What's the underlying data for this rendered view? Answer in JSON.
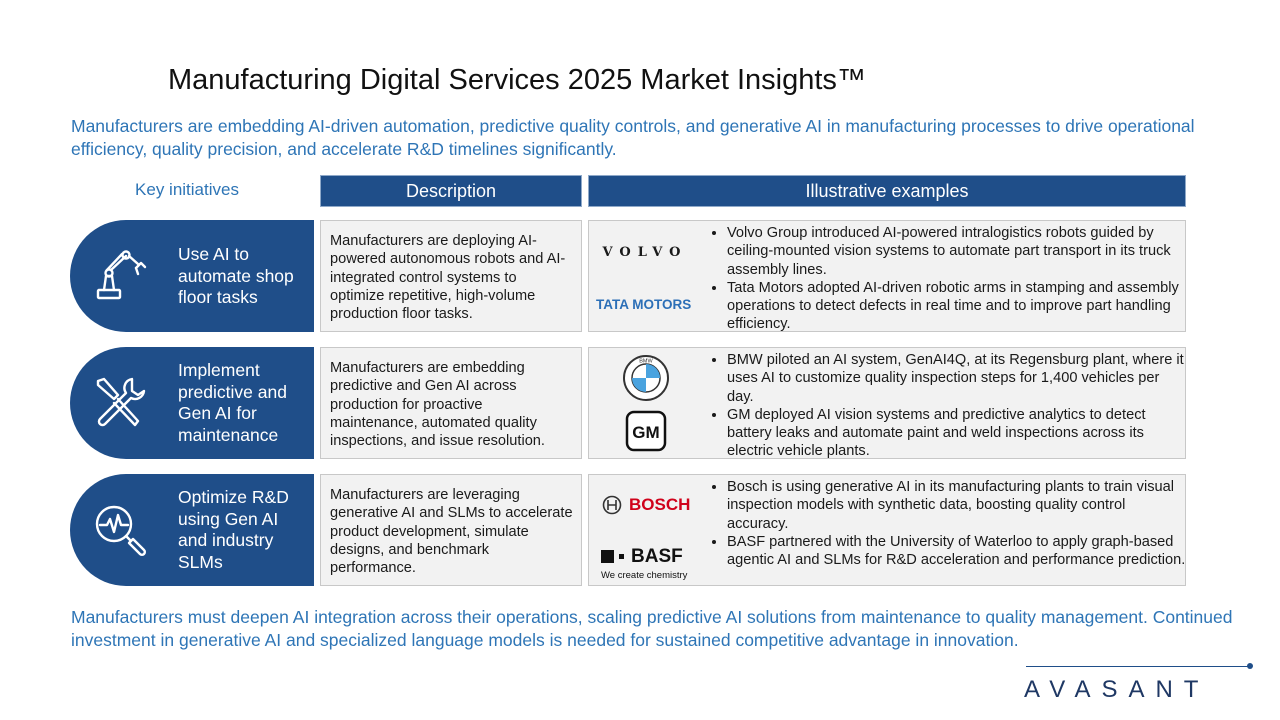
{
  "title": "Manufacturing Digital Services 2025 Market Insights™",
  "intro": "Manufacturers are embedding AI-driven automation, predictive quality controls, and generative AI in manufacturing processes to drive operational efficiency, quality precision, and accelerate R&D timelines significantly.",
  "headers": {
    "key": "Key initiatives",
    "description": "Description",
    "examples": "Illustrative examples"
  },
  "rows": [
    {
      "initiative": "Use AI to automate shop floor tasks",
      "icon": "robot-arm-icon",
      "description": "Manufacturers are deploying AI-powered autonomous robots and AI-integrated control systems to optimize repetitive, high-volume production floor tasks.",
      "logos": [
        "VOLVO",
        "TATA MOTORS"
      ],
      "examples": [
        "Volvo Group introduced AI-powered intralogistics robots guided by ceiling-mounted vision systems to automate part transport in its truck assembly lines.",
        "Tata Motors adopted AI-driven robotic arms in stamping and assembly operations to detect defects in real time and to improve part handling efficiency."
      ]
    },
    {
      "initiative": "Implement predictive and Gen AI for maintenance",
      "icon": "wrench-screwdriver-icon",
      "description": "Manufacturers are embedding predictive and Gen AI across production for proactive maintenance, automated quality inspections, and issue resolution.",
      "logos": [
        "BMW",
        "GM"
      ],
      "examples": [
        "BMW piloted an AI system, GenAI4Q, at its Regensburg plant, where it uses AI to customize quality inspection steps for 1,400 vehicles per day.",
        "GM deployed AI vision systems and predictive analytics to detect battery leaks and automate paint and weld inspections across its electric vehicle plants."
      ]
    },
    {
      "initiative": "Optimize R&D using Gen AI and industry SLMs",
      "icon": "magnifier-pulse-icon",
      "description": "Manufacturers are leveraging generative AI and SLMs to accelerate product development, simulate designs, and benchmark performance.",
      "logos": [
        "BOSCH",
        "BASF",
        "We create chemistry"
      ],
      "examples": [
        "Bosch is using generative AI in its manufacturing plants to train visual inspection models with synthetic data, boosting quality control accuracy.",
        "BASF partnered with the University of Waterloo to apply graph-based agentic AI and SLMs for R&D acceleration and performance prediction."
      ]
    }
  ],
  "outro": "Manufacturers must deepen AI integration across their operations, scaling predictive AI solutions from maintenance to quality management. Continued investment in generative AI and specialized language models is needed for sustained competitive advantage in innovation.",
  "brand": "AVASANT",
  "colors": {
    "navy": "#1f4e89",
    "accent_blue": "#2e75b6",
    "bosch_red": "#d0021b",
    "tata_blue": "#2c6fb7"
  }
}
